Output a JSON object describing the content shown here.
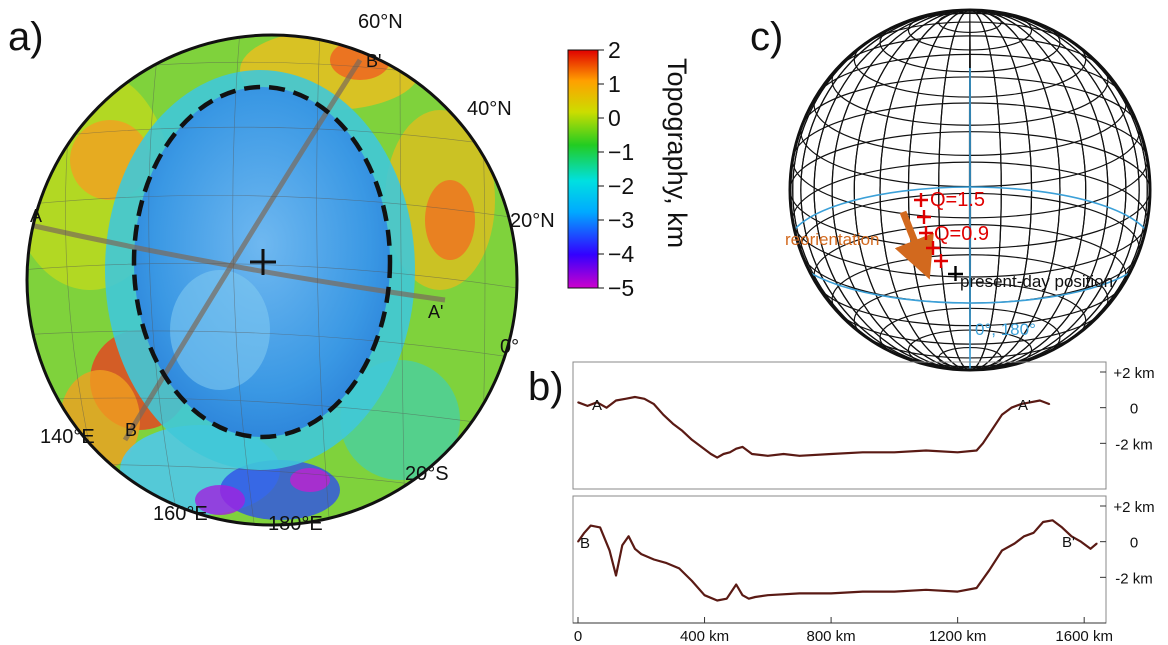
{
  "panels": {
    "a": "a)",
    "b": "b)",
    "c": "c)"
  },
  "map": {
    "lat_labels": [
      "60°N",
      "40°N",
      "20°N",
      "0°",
      "20°S"
    ],
    "lon_labels": [
      "140°E",
      "160°E",
      "180°E"
    ],
    "profile_points": [
      "A",
      "A'",
      "B",
      "B'"
    ],
    "colors": {
      "basin": "#3b9fe6",
      "basin_rim": "#111111",
      "profile_track": "#7a6a5a"
    }
  },
  "colorbar": {
    "title": "Topography, km",
    "ticks": [
      "2",
      "1",
      "0",
      "−1",
      "−2",
      "−3",
      "−4",
      "−5"
    ],
    "range": [
      -5,
      2
    ],
    "colors": [
      "#cc00cc",
      "#3300ff",
      "#00aaff",
      "#00e0e0",
      "#22cc22",
      "#ccdd00",
      "#ffa000",
      "#e00000"
    ]
  },
  "globe": {
    "labels": {
      "q1": "Q=1.5",
      "q2": "Q=0.9",
      "reorientation": "reorientation",
      "present": "present-day position",
      "equator": "0°, 180°"
    },
    "colors": {
      "q_markers": "#e00000",
      "arrow": "#d2691e",
      "present_marker": "#000000",
      "equator": "#3ba0d8"
    }
  },
  "chart_data": [
    {
      "type": "line",
      "name_points": [
        "A",
        "A'"
      ],
      "x": [
        0,
        30,
        60,
        90,
        120,
        150,
        180,
        210,
        240,
        270,
        300,
        330,
        360,
        390,
        420,
        440,
        460,
        480,
        500,
        520,
        550,
        600,
        650,
        700,
        800,
        900,
        1000,
        1100,
        1200,
        1260,
        1280,
        1310,
        1340,
        1370,
        1400,
        1430,
        1460,
        1490
      ],
      "y": [
        0.3,
        0.1,
        0.3,
        0.0,
        0.4,
        0.5,
        0.6,
        0.5,
        0.2,
        -0.4,
        -0.9,
        -1.3,
        -1.8,
        -2.2,
        -2.6,
        -2.8,
        -2.6,
        -2.5,
        -2.3,
        -2.2,
        -2.6,
        -2.7,
        -2.6,
        -2.7,
        -2.6,
        -2.5,
        -2.5,
        -2.4,
        -2.5,
        -2.4,
        -2.0,
        -1.2,
        -0.4,
        0.0,
        0.2,
        0.3,
        0.4,
        0.2
      ],
      "right_ticks": [
        "+2 km",
        "0",
        "-2 km"
      ],
      "ylim": [
        -4,
        2
      ]
    },
    {
      "type": "line",
      "name_points": [
        "B",
        "B'"
      ],
      "x": [
        0,
        20,
        40,
        70,
        100,
        120,
        140,
        160,
        180,
        200,
        240,
        280,
        320,
        360,
        400,
        440,
        470,
        500,
        520,
        540,
        560,
        600,
        700,
        800,
        900,
        1000,
        1100,
        1200,
        1260,
        1300,
        1340,
        1380,
        1410,
        1440,
        1470,
        1500,
        1530,
        1560,
        1590,
        1620,
        1640
      ],
      "y": [
        0.0,
        0.5,
        0.9,
        0.8,
        -0.5,
        -1.9,
        -0.2,
        0.3,
        -0.4,
        -0.7,
        -1.0,
        -1.2,
        -1.5,
        -2.2,
        -3.0,
        -3.3,
        -3.2,
        -2.4,
        -3.0,
        -3.2,
        -3.1,
        -3.0,
        -2.9,
        -2.9,
        -2.8,
        -2.8,
        -2.7,
        -2.8,
        -2.6,
        -1.6,
        -0.5,
        -0.1,
        0.3,
        0.5,
        1.1,
        1.2,
        0.8,
        0.3,
        0.0,
        -0.4,
        -0.1
      ],
      "right_ticks": [
        "+2 km",
        "0",
        "-2 km"
      ],
      "ylim": [
        -4,
        2
      ]
    }
  ],
  "xaxis": {
    "ticks": [
      "0",
      "400 km",
      "800 km",
      "1200 km",
      "1600 km"
    ],
    "values": [
      0,
      400,
      800,
      1200,
      1600
    ],
    "xlim": [
      0,
      1650
    ]
  }
}
